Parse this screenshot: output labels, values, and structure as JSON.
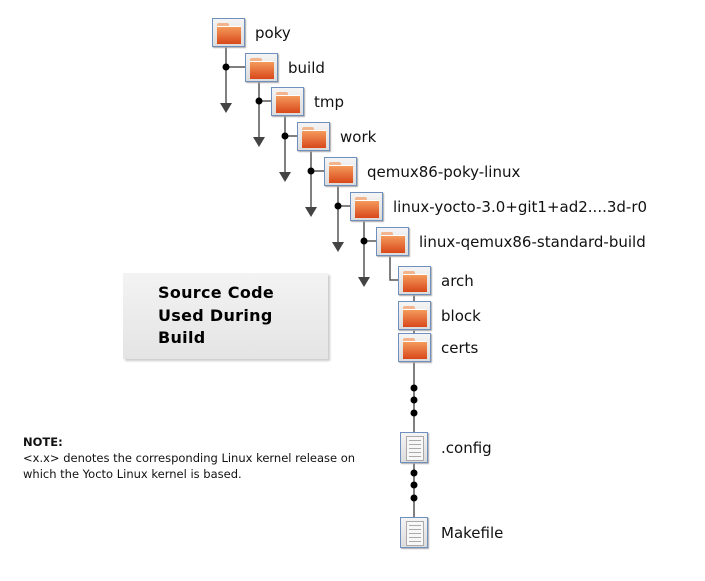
{
  "tree": {
    "nodes": [
      {
        "label": "poky",
        "icon": "folder-icon"
      },
      {
        "label": "build",
        "icon": "folder-icon"
      },
      {
        "label": "tmp",
        "icon": "folder-icon"
      },
      {
        "label": "work",
        "icon": "folder-icon"
      },
      {
        "label": "qemux86-poky-linux",
        "icon": "folder-icon"
      },
      {
        "label": "linux-yocto-3.0+git1+ad2....3d-r0",
        "icon": "folder-icon"
      },
      {
        "label": "linux-qemux86-standard-build",
        "icon": "folder-icon"
      },
      {
        "label": "arch",
        "icon": "folder-icon"
      },
      {
        "label": "block",
        "icon": "folder-icon"
      },
      {
        "label": "certs",
        "icon": "folder-icon"
      },
      {
        "label": ".config",
        "icon": "file-icon"
      },
      {
        "label": "Makefile",
        "icon": "file-icon"
      }
    ]
  },
  "callout": {
    "lines": [
      "Source Code",
      "Used During",
      "Build"
    ]
  },
  "note": {
    "title": "NOTE:",
    "line1": "<x.x> denotes the corresponding Linux kernel release on",
    "line2": "which the Yocto Linux kernel is based."
  },
  "colors": {
    "folder": "#e0592a",
    "icon_border": "#6f8fbf",
    "line": "#555555"
  }
}
